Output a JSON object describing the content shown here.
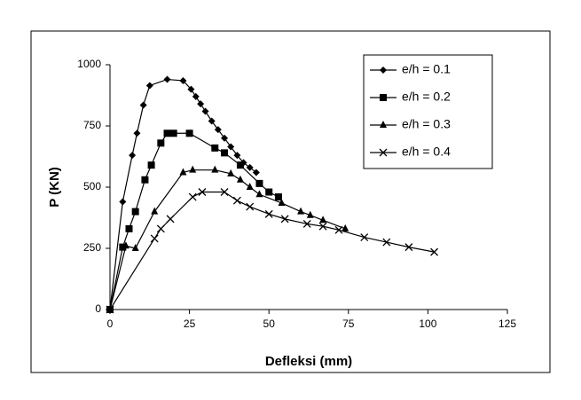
{
  "chart_data": {
    "type": "line",
    "x_label": "Defleksi (mm)",
    "y_label": "P (KN)",
    "xlim": [
      0,
      125
    ],
    "xticks": [
      0,
      25,
      50,
      75,
      100,
      125
    ],
    "ylim": [
      0,
      1000
    ],
    "yticks": [
      0,
      250,
      500,
      750,
      1000
    ],
    "grid": false,
    "legend": "upper right",
    "series": [
      {
        "name": "e/h = 0.1",
        "color": "#000000",
        "marker": "diamond",
        "x": [
          0,
          4,
          7,
          8.5,
          10.5,
          12.5,
          18,
          23,
          25.5,
          27,
          28.5,
          30,
          32,
          34,
          36,
          38,
          40,
          42,
          44,
          46
        ],
        "values": [
          0,
          440,
          630,
          720,
          835,
          915,
          940,
          935,
          900,
          870,
          840,
          810,
          770,
          735,
          700,
          665,
          630,
          600,
          580,
          560
        ]
      },
      {
        "name": "e/h = 0.2",
        "color": "#000000",
        "marker": "square",
        "x": [
          0,
          4,
          6,
          8,
          11,
          13,
          16,
          18,
          20,
          25,
          33,
          36,
          41,
          47,
          50,
          53
        ],
        "values": [
          0,
          255,
          330,
          400,
          530,
          590,
          680,
          720,
          720,
          720,
          660,
          640,
          590,
          515,
          480,
          460
        ]
      },
      {
        "name": "e/h = 0.3",
        "color": "#000000",
        "marker": "triangle",
        "x": [
          0,
          5,
          8,
          14,
          23,
          26,
          33,
          38,
          41,
          44,
          47,
          54,
          60,
          63,
          67,
          74
        ],
        "values": [
          0,
          260,
          250,
          400,
          560,
          570,
          570,
          555,
          530,
          500,
          470,
          435,
          400,
          385,
          365,
          330
        ]
      },
      {
        "name": "e/h = 0.4",
        "color": "#000000",
        "marker": "x",
        "x": [
          0,
          14,
          16,
          19,
          26,
          29,
          36,
          40,
          44,
          50,
          55,
          62,
          67,
          72,
          80,
          87,
          94,
          102
        ],
        "values": [
          0,
          290,
          330,
          370,
          460,
          480,
          480,
          445,
          420,
          390,
          370,
          350,
          340,
          325,
          295,
          275,
          255,
          235
        ]
      }
    ]
  }
}
